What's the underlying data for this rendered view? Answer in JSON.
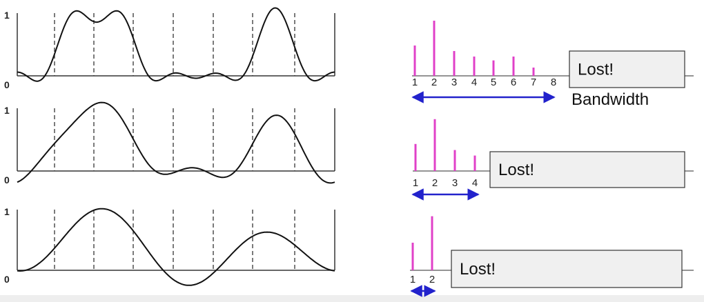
{
  "panels": [
    {
      "axis_top": "1",
      "axis_bottom": "0",
      "harmonics": [
        {
          "label": "1",
          "amplitude": 0.55
        },
        {
          "label": "2",
          "amplitude": 1.0
        },
        {
          "label": "3",
          "amplitude": 0.45
        },
        {
          "label": "4",
          "amplitude": 0.35
        },
        {
          "label": "5",
          "amplitude": 0.28
        },
        {
          "label": "6",
          "amplitude": 0.35
        },
        {
          "label": "7",
          "amplitude": 0.15
        },
        {
          "label": "8",
          "amplitude": 0
        }
      ],
      "lost": "Lost!",
      "bandwidth": "Bandwidth"
    },
    {
      "axis_top": "1",
      "axis_bottom": "0",
      "harmonics": [
        {
          "label": "1",
          "amplitude": 0.49
        },
        {
          "label": "2",
          "amplitude": 0.94
        },
        {
          "label": "3",
          "amplitude": 0.38
        },
        {
          "label": "4",
          "amplitude": 0.28
        }
      ],
      "lost": "Lost!"
    },
    {
      "axis_top": "1",
      "axis_bottom": "0",
      "harmonics": [
        {
          "label": "1",
          "amplitude": 0.5
        },
        {
          "label": "2",
          "amplitude": 0.98
        }
      ],
      "lost": "Lost!"
    }
  ]
}
